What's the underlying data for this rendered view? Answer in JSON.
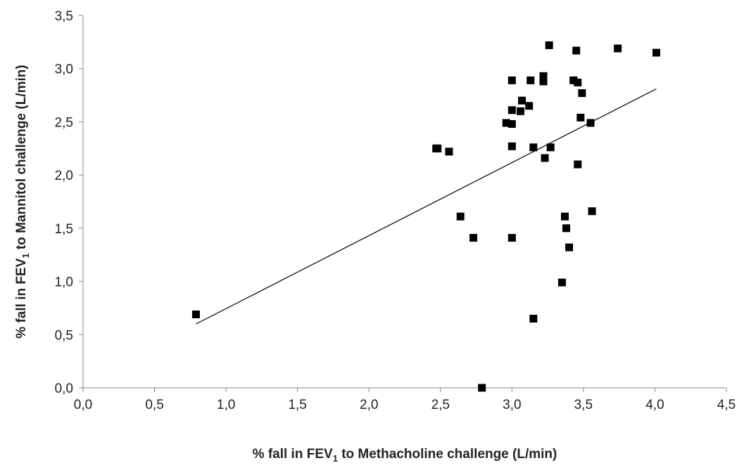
{
  "chart_data": {
    "type": "scatter",
    "x_title": {
      "before": "% fall in FEV",
      "sub": "1",
      "after": " to Methacholine challenge (L/min)"
    },
    "y_title": {
      "before": "% fall in FEV",
      "sub": "1",
      "after": " to Mannitol challenge (L/min)"
    },
    "xlim": [
      0,
      4.5
    ],
    "ylim": [
      0,
      3.5
    ],
    "x_ticks": [
      0,
      0.5,
      1,
      1.5,
      2,
      2.5,
      3,
      3.5,
      4,
      4.5
    ],
    "y_ticks": [
      0,
      0.5,
      1,
      1.5,
      2,
      2.5,
      3,
      3.5
    ],
    "x_tick_labels": [
      "0,0",
      "0,5",
      "1,0",
      "1,5",
      "2,0",
      "2,5",
      "3,0",
      "3,5",
      "4,0",
      "4,5"
    ],
    "y_tick_labels": [
      "0,0",
      "0,5",
      "1,0",
      "1,5",
      "2,0",
      "2,5",
      "3,0",
      "3,5"
    ],
    "grid": false,
    "legend": "none",
    "marker": "square",
    "marker_color": "#000000",
    "points": [
      [
        0.79,
        0.69
      ],
      [
        2.47,
        2.25
      ],
      [
        2.48,
        2.25
      ],
      [
        2.56,
        2.22
      ],
      [
        2.64,
        1.61
      ],
      [
        2.73,
        1.41
      ],
      [
        2.79,
        0.0
      ],
      [
        2.96,
        2.49
      ],
      [
        3.0,
        2.48
      ],
      [
        3.0,
        2.61
      ],
      [
        3.0,
        2.89
      ],
      [
        3.0,
        2.27
      ],
      [
        3.0,
        1.41
      ],
      [
        3.06,
        2.6
      ],
      [
        3.07,
        2.7
      ],
      [
        3.12,
        2.65
      ],
      [
        3.13,
        2.89
      ],
      [
        3.15,
        2.26
      ],
      [
        3.15,
        0.65
      ],
      [
        3.22,
        2.93
      ],
      [
        3.22,
        2.88
      ],
      [
        3.23,
        2.16
      ],
      [
        3.26,
        3.22
      ],
      [
        3.27,
        2.26
      ],
      [
        3.35,
        0.99
      ],
      [
        3.37,
        1.61
      ],
      [
        3.38,
        1.5
      ],
      [
        3.4,
        1.32
      ],
      [
        3.43,
        2.89
      ],
      [
        3.45,
        3.17
      ],
      [
        3.46,
        2.87
      ],
      [
        3.46,
        2.1
      ],
      [
        3.48,
        2.54
      ],
      [
        3.49,
        2.77
      ],
      [
        3.55,
        2.49
      ],
      [
        3.56,
        1.66
      ],
      [
        3.74,
        3.19
      ],
      [
        4.01,
        3.15
      ]
    ],
    "trendline": {
      "x": [
        0.79,
        4.01
      ],
      "y": [
        0.6,
        2.81
      ],
      "color": "#000000"
    }
  }
}
